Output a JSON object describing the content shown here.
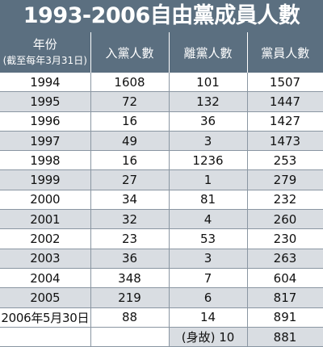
{
  "title": "1993-2006自由黨成員人數",
  "chart_data": {
    "type": "table",
    "columns": [
      "年份",
      "入黨人數",
      "離黨人數",
      "黨員人數"
    ],
    "year_note": "(截至每年3月31日)",
    "rows": [
      [
        "1994",
        "1608",
        "101",
        "1507"
      ],
      [
        "1995",
        "72",
        "132",
        "1447"
      ],
      [
        "1996",
        "16",
        "36",
        "1427"
      ],
      [
        "1997",
        "49",
        "3",
        "1473"
      ],
      [
        "1998",
        "16",
        "1236",
        "253"
      ],
      [
        "1999",
        "27",
        "1",
        "279"
      ],
      [
        "2000",
        "34",
        "81",
        "232"
      ],
      [
        "2001",
        "32",
        "4",
        "260"
      ],
      [
        "2002",
        "23",
        "53",
        "230"
      ],
      [
        "2003",
        "36",
        "3",
        "263"
      ],
      [
        "2004",
        "348",
        "7",
        "604"
      ],
      [
        "2005",
        "219",
        "6",
        "817"
      ],
      [
        "2006年5月30日",
        "88",
        "14",
        "891"
      ],
      [
        "",
        "",
        "(身故) 10",
        "881"
      ]
    ]
  }
}
